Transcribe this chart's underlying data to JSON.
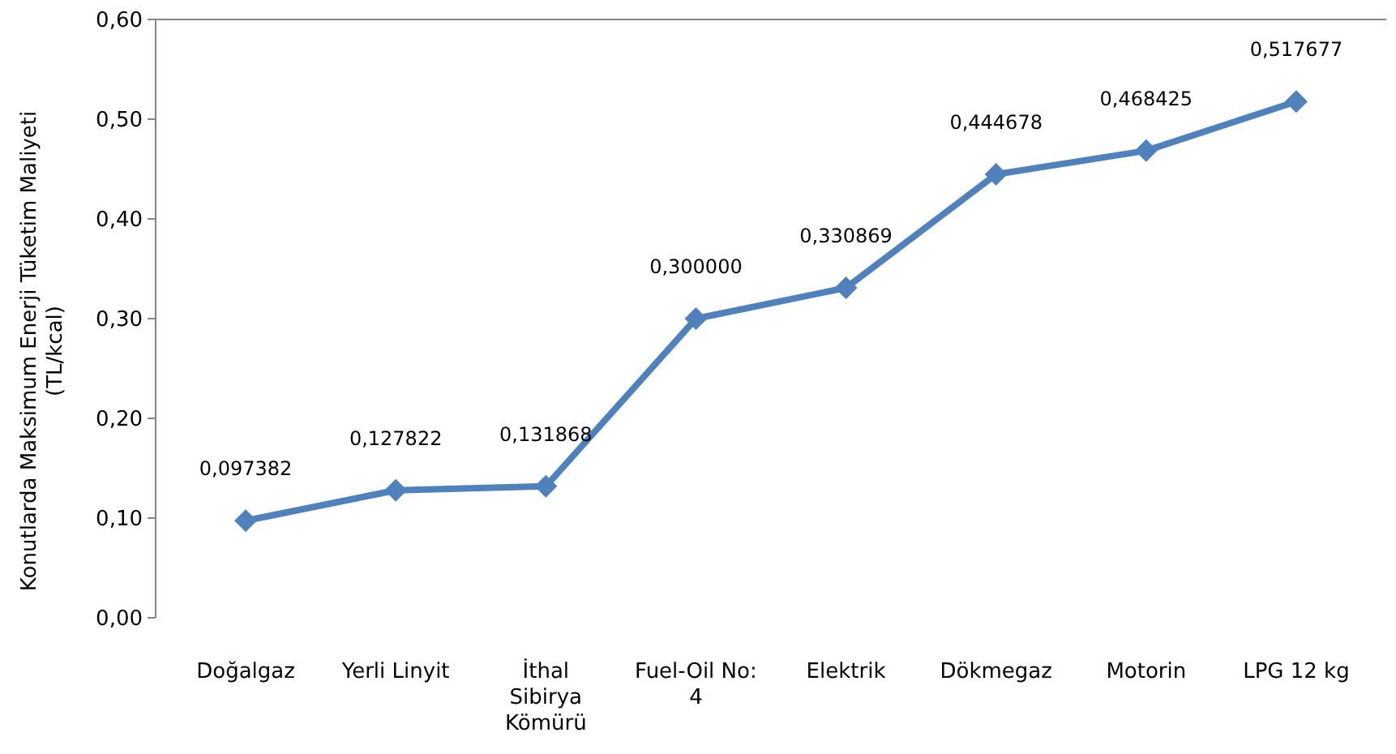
{
  "chart_data": {
    "type": "line",
    "ylabel": "Konutlarda Maksimum Enerji Tüketim Maliyeti (TL/kcal)",
    "categories": [
      "Doğalgaz",
      "Yerli Linyit",
      "İthal Sibirya Kömürü",
      "Fuel-Oil No: 4",
      "Elektrik",
      "Dökmegaz",
      "Motorin",
      "LPG 12 kg"
    ],
    "series": [
      {
        "color": "#4f81bd",
        "values": [
          0.097382,
          0.127822,
          0.131868,
          0.3,
          0.330869,
          0.444678,
          0.468425,
          0.517677
        ],
        "value_labels": [
          "0,097382",
          "0,127822",
          "0,131868",
          "0,300000",
          "0,330869",
          "0,444678",
          "0,468425",
          "0,517677"
        ]
      }
    ],
    "ylim": [
      0,
      0.6
    ],
    "yticks": [
      {
        "value": 0,
        "label": "0,00"
      },
      {
        "value": 0.1,
        "label": "0,10"
      },
      {
        "value": 0.2,
        "label": "0,20"
      },
      {
        "value": 0.3,
        "label": "0,30"
      },
      {
        "value": 0.4,
        "label": "0,40"
      },
      {
        "value": 0.5,
        "label": "0,50"
      },
      {
        "value": 0.6,
        "label": "0,60"
      }
    ],
    "marker": "diamond",
    "line_style": "solid",
    "grid": false
  }
}
